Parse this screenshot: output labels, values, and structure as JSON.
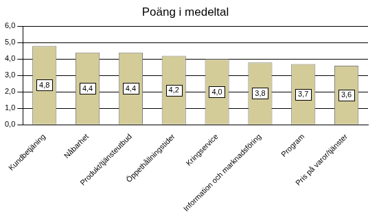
{
  "chart_data": {
    "type": "bar",
    "title": "Poäng i medeltal",
    "categories": [
      "Kundbetjäning",
      "Nåbarhet",
      "Produkt/tjänsteutbud",
      "Öppethållningstider",
      "Kringservice",
      "Information och marknadsföring",
      "Program",
      "Pris på varor/tjänster"
    ],
    "values": [
      4.8,
      4.4,
      4.4,
      4.2,
      4.0,
      3.8,
      3.7,
      3.6
    ],
    "value_labels": [
      "4,8",
      "4,4",
      "4,4",
      "4,2",
      "4,0",
      "3,8",
      "3,7",
      "3,6"
    ],
    "data_labels": true,
    "color": "#d3cc99",
    "ylim": [
      0,
      6
    ],
    "yticks": [
      {
        "value": 0,
        "label": "0,0"
      },
      {
        "value": 1,
        "label": "1,0"
      },
      {
        "value": 2,
        "label": "2,0"
      },
      {
        "value": 3,
        "label": "3,0"
      },
      {
        "value": 4,
        "label": "4,0"
      },
      {
        "value": 5,
        "label": "5,0"
      },
      {
        "value": 6,
        "label": "6,0"
      }
    ],
    "grid": true
  }
}
